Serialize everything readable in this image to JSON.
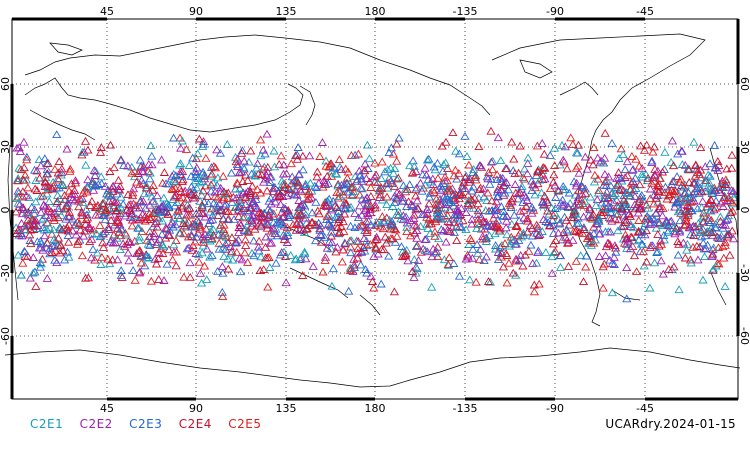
{
  "map": {
    "top_ticks": [
      "45",
      "90",
      "135",
      "180",
      "-135",
      "-90",
      "-45"
    ],
    "bottom_ticks": [
      "45",
      "90",
      "135",
      "180",
      "-135",
      "-90",
      "-45"
    ],
    "left_ticks": [
      "60",
      "30",
      "0",
      "-30",
      "-60"
    ],
    "right_ticks": [
      "60",
      "30",
      "0",
      "-30",
      "-60"
    ]
  },
  "legend": [
    {
      "label": "C2E1",
      "color": "#17a0b8"
    },
    {
      "label": "C2E2",
      "color": "#a020b0"
    },
    {
      "label": "C2E3",
      "color": "#2566d8"
    },
    {
      "label": "C2E4",
      "color": "#c8102e"
    },
    {
      "label": "C2E5",
      "color": "#e02020"
    }
  ],
  "footer": {
    "label": "UCARdry.2024-01-15"
  }
}
